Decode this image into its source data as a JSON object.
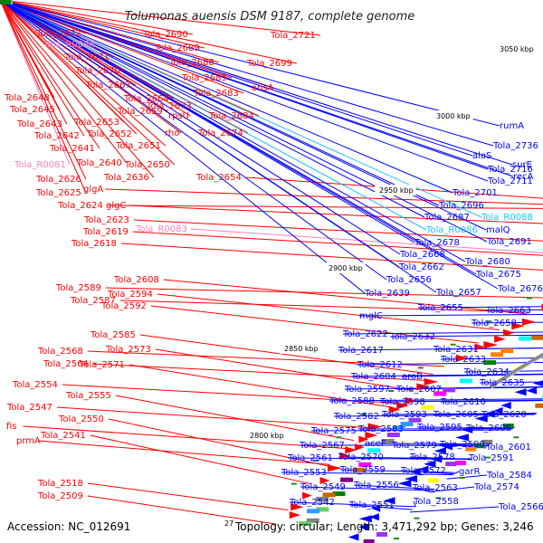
{
  "title": "Tolumonas auensis DSM 9187, complete genome",
  "footer": {
    "accession": "Accession: NC_012691",
    "topology": "Topology: circular; Length: 3,471,292 bp; Genes: 3,246",
    "corner_mark": "27"
  },
  "kbp_labels": [
    "3050 kbp",
    "3000 kbp",
    "2950 kbp",
    "2900 kbp",
    "2850 kbp",
    "2800 kbp"
  ],
  "colors": {
    "forward_strand": "#ff0000",
    "reverse_strand": "#0000ff",
    "rna": "#ff80c0",
    "reverse_rna": "#20c0ff",
    "backbone": "#888888"
  },
  "left_labels": [
    {
      "text": "Tola_2672",
      "color": "#ff0000"
    },
    {
      "text": "Tola_R0084",
      "color": "#ff80c0"
    },
    {
      "text": "Tola_2671",
      "color": "#ff0000"
    },
    {
      "text": "Tola_2670",
      "color": "#ff0000"
    },
    {
      "text": "Tola_2667",
      "color": "#ff0000"
    },
    {
      "text": "Tola_2648",
      "color": "#ff0000"
    },
    {
      "text": "Tola_2645",
      "color": "#ff0000"
    },
    {
      "text": "Tola_2643",
      "color": "#ff0000"
    },
    {
      "text": "Tola_2642",
      "color": "#ff0000"
    },
    {
      "text": "Tola_2641",
      "color": "#ff0000"
    },
    {
      "text": "Tola_R0081",
      "color": "#ff80c0"
    },
    {
      "text": "Tola_2626",
      "color": "#ff0000"
    },
    {
      "text": "Tola_2625",
      "color": "#ff0000"
    },
    {
      "text": "Tola_2624",
      "color": "#ff0000"
    },
    {
      "text": "Tola_2589",
      "color": "#ff0000"
    },
    {
      "text": "Tola_2587",
      "color": "#ff0000"
    },
    {
      "text": "Tola_2568",
      "color": "#ff0000"
    },
    {
      "text": "Tola_2564",
      "color": "#ff0000"
    },
    {
      "text": "Tola_2554",
      "color": "#ff0000"
    },
    {
      "text": "Tola_2547",
      "color": "#ff0000"
    },
    {
      "text": "fis",
      "color": "#ff0000"
    },
    {
      "text": "prmA",
      "color": "#ff0000"
    },
    {
      "text": "Tola_2518",
      "color": "#ff0000"
    },
    {
      "text": "Tola_2509",
      "color": "#ff0000"
    },
    {
      "text": "Tola_2690",
      "color": "#ff0000"
    },
    {
      "text": "Tola_2689",
      "color": "#ff0000"
    },
    {
      "text": "Tola_2688",
      "color": "#ff0000"
    },
    {
      "text": "Tola_2685",
      "color": "#ff0000"
    },
    {
      "text": "Tola_2683",
      "color": "#ff0000"
    },
    {
      "text": "Tola_2664",
      "color": "#ff0000"
    },
    {
      "text": "Tola_2673",
      "color": "#ff0000"
    },
    {
      "text": "Tola_2659",
      "color": "#ff0000"
    },
    {
      "text": "rpsU",
      "color": "#ff0000"
    },
    {
      "text": "Tola_2653",
      "color": "#ff0000"
    },
    {
      "text": "Tola_2652",
      "color": "#ff0000"
    },
    {
      "text": "rho",
      "color": "#ff0000"
    },
    {
      "text": "Tola_2651",
      "color": "#ff0000"
    },
    {
      "text": "Tola_2640",
      "color": "#ff0000"
    },
    {
      "text": "Tola_2650",
      "color": "#ff0000"
    },
    {
      "text": "Tola_2636",
      "color": "#ff0000"
    },
    {
      "text": "glgA",
      "color": "#ff0000"
    },
    {
      "text": "glgC",
      "color": "#ff0000"
    },
    {
      "text": "Tola_2623",
      "color": "#ff0000"
    },
    {
      "text": "Tola_2619",
      "color": "#ff0000"
    },
    {
      "text": "Tola_2618",
      "color": "#ff0000"
    },
    {
      "text": "Tola_R0083",
      "color": "#ff80c0"
    },
    {
      "text": "Tola_2608",
      "color": "#ff0000"
    },
    {
      "text": "Tola_2594",
      "color": "#ff0000"
    },
    {
      "text": "Tola_2592",
      "color": "#ff0000"
    },
    {
      "text": "Tola_2585",
      "color": "#ff0000"
    },
    {
      "text": "Tola_2573",
      "color": "#ff0000"
    },
    {
      "text": "Tola_2571",
      "color": "#ff0000"
    },
    {
      "text": "Tola_2555",
      "color": "#ff0000"
    },
    {
      "text": "Tola_2550",
      "color": "#ff0000"
    },
    {
      "text": "Tola_2541",
      "color": "#ff0000"
    },
    {
      "text": "Tola_2721",
      "color": "#ff0000"
    },
    {
      "text": "Tola_2699",
      "color": "#ff0000"
    },
    {
      "text": "ansA",
      "color": "#ff0000"
    },
    {
      "text": "Tola_2684",
      "color": "#ff0000"
    },
    {
      "text": "Tola_2674",
      "color": "#ff0000"
    },
    {
      "text": "Tola_2654",
      "color": "#ff0000"
    }
  ],
  "right_labels": [
    {
      "text": "rumA",
      "color": "#0000ff"
    },
    {
      "text": "Tola_2736",
      "color": "#0000ff"
    },
    {
      "text": "alaS",
      "color": "#0000ff"
    },
    {
      "text": "surE",
      "color": "#0000ff"
    },
    {
      "text": "Tola_2716",
      "color": "#0000ff"
    },
    {
      "text": "recA",
      "color": "#0000ff"
    },
    {
      "text": "Tola_2711",
      "color": "#0000ff"
    },
    {
      "text": "Tola_2701",
      "color": "#0000ff"
    },
    {
      "text": "Tola_2696",
      "color": "#0000ff"
    },
    {
      "text": "Tola_2687",
      "color": "#0000ff"
    },
    {
      "text": "Tola_R0088",
      "color": "#20c0ff"
    },
    {
      "text": "Tola_R0086",
      "color": "#20c0ff"
    },
    {
      "text": "malQ",
      "color": "#0000ff"
    },
    {
      "text": "Tola_2678",
      "color": "#0000ff"
    },
    {
      "text": "Tola_2691",
      "color": "#0000ff"
    },
    {
      "text": "Tola_2668",
      "color": "#0000ff"
    },
    {
      "text": "Tola_2680",
      "color": "#0000ff"
    },
    {
      "text": "Tola_2662",
      "color": "#0000ff"
    },
    {
      "text": "Tola_2675",
      "color": "#0000ff"
    },
    {
      "text": "Tola_2656",
      "color": "#0000ff"
    },
    {
      "text": "Tola_2676",
      "color": "#0000ff"
    },
    {
      "text": "Tola_2639",
      "color": "#0000ff"
    },
    {
      "text": "Tola_2657",
      "color": "#0000ff"
    },
    {
      "text": "Tola_2655",
      "color": "#0000ff"
    },
    {
      "text": "Tola_2663",
      "color": "#0000ff"
    },
    {
      "text": "mglC",
      "color": "#0000ff"
    },
    {
      "text": "Tola_2658",
      "color": "#0000ff"
    },
    {
      "text": "Tola_2622",
      "color": "#0000ff"
    },
    {
      "text": "Tola_2632",
      "color": "#0000ff"
    },
    {
      "text": "Tola_2617",
      "color": "#0000ff"
    },
    {
      "text": "Tola_2631",
      "color": "#0000ff"
    },
    {
      "text": "Tola_2612",
      "color": "#0000ff"
    },
    {
      "text": "Tola_2633",
      "color": "#0000ff"
    },
    {
      "text": "Tola_2604",
      "color": "#0000ff"
    },
    {
      "text": "aroB",
      "color": "#0000ff"
    },
    {
      "text": "Tola_2634",
      "color": "#0000ff"
    },
    {
      "text": "Tola_2597",
      "color": "#0000ff"
    },
    {
      "text": "Tola_2607",
      "color": "#0000ff"
    },
    {
      "text": "Tola_2635",
      "color": "#0000ff"
    },
    {
      "text": "Tola_2588",
      "color": "#0000ff"
    },
    {
      "text": "Tola_2598",
      "color": "#0000ff"
    },
    {
      "text": "Tola_2610",
      "color": "#0000ff"
    },
    {
      "text": "Tola_2582",
      "color": "#0000ff"
    },
    {
      "text": "Tola_2593",
      "color": "#0000ff"
    },
    {
      "text": "Tola_2605",
      "color": "#0000ff"
    },
    {
      "text": "Tola_2620",
      "color": "#0000ff"
    },
    {
      "text": "Tola_2575",
      "color": "#0000ff"
    },
    {
      "text": "Tola_2583",
      "color": "#0000ff"
    },
    {
      "text": "Tola_2595",
      "color": "#0000ff"
    },
    {
      "text": "Tola_2606",
      "color": "#0000ff"
    },
    {
      "text": "Tola_2567",
      "color": "#0000ff"
    },
    {
      "text": "aceF",
      "color": "#0000ff"
    },
    {
      "text": "Tola_2579",
      "color": "#0000ff"
    },
    {
      "text": "Tola_2590",
      "color": "#0000ff"
    },
    {
      "text": "Tola_2601",
      "color": "#0000ff"
    },
    {
      "text": "Tola_2561",
      "color": "#0000ff"
    },
    {
      "text": "Tola_2570",
      "color": "#0000ff"
    },
    {
      "text": "Tola_2578",
      "color": "#0000ff"
    },
    {
      "text": "Tola_2591",
      "color": "#0000ff"
    },
    {
      "text": "Tola_2553",
      "color": "#0000ff"
    },
    {
      "text": "Tola_2559",
      "color": "#0000ff"
    },
    {
      "text": "Tola_2572",
      "color": "#0000ff"
    },
    {
      "text": "garR",
      "color": "#0000ff"
    },
    {
      "text": "Tola_2584",
      "color": "#0000ff"
    },
    {
      "text": "Tola_2549",
      "color": "#0000ff"
    },
    {
      "text": "Tola_2556",
      "color": "#0000ff"
    },
    {
      "text": "Tola_2563",
      "color": "#0000ff"
    },
    {
      "text": "Tola_2574",
      "color": "#0000ff"
    },
    {
      "text": "Tola_2542",
      "color": "#0000ff"
    },
    {
      "text": "Tola_2551",
      "color": "#0000ff"
    },
    {
      "text": "Tola_2558",
      "color": "#0000ff"
    },
    {
      "text": "Tola_2566",
      "color": "#0000ff"
    }
  ]
}
